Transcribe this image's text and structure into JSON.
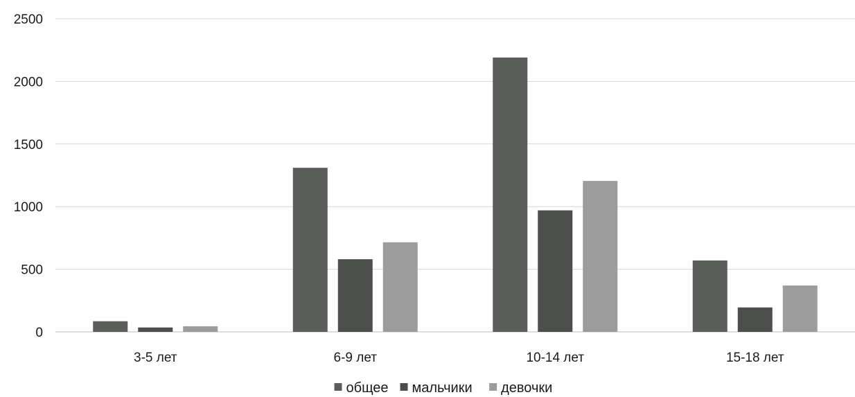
{
  "chart_data": {
    "type": "bar",
    "title": "",
    "xlabel": "",
    "ylabel": "",
    "categories": [
      "3-5 лет",
      "6-9 лет",
      "10-14 лет",
      "15-18 лет"
    ],
    "series": [
      {
        "name": "общее",
        "values": [
          85,
          1310,
          2190,
          570
        ],
        "color": "#5b5d5b"
      },
      {
        "name": "мальчики",
        "values": [
          35,
          580,
          970,
          195
        ],
        "color": "#4c4e4c"
      },
      {
        "name": "девочки",
        "values": [
          45,
          715,
          1205,
          370
        ],
        "color": "#9c9c9c"
      }
    ],
    "ylim": [
      0,
      2500
    ],
    "yticks": [
      0,
      500,
      1000,
      1500,
      2000,
      2500
    ],
    "grid": true,
    "legend": "bottom"
  }
}
